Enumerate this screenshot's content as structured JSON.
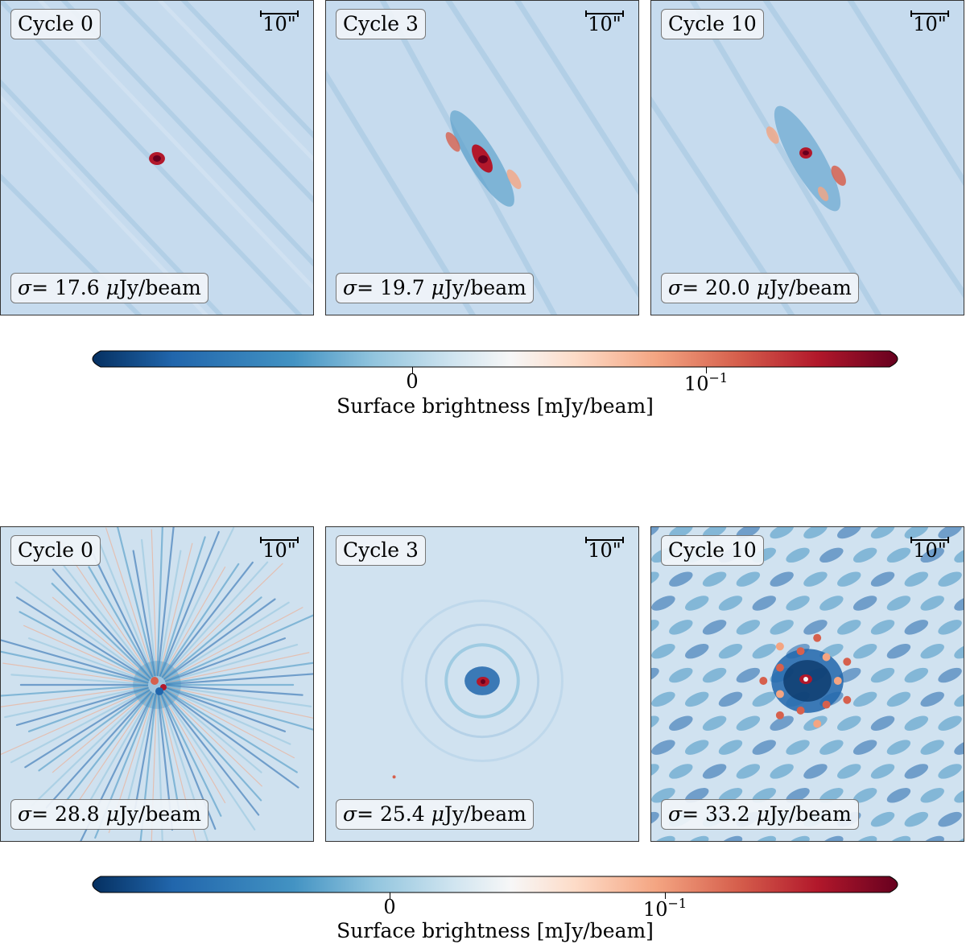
{
  "top_row": {
    "panels": [
      {
        "cycle": "Cycle 0",
        "sigma_value": "= 17.6 ",
        "sigma_unit": "Jy/beam"
      },
      {
        "cycle": "Cycle 3",
        "sigma_value": "= 19.7 ",
        "sigma_unit": "Jy/beam"
      },
      {
        "cycle": "Cycle 10",
        "sigma_value": "= 20.0 ",
        "sigma_unit": "Jy/beam"
      }
    ],
    "colorbar": {
      "tick_zero": "0",
      "tick_exp_base": "10",
      "tick_exp": "−1",
      "label": "Surface brightness [mJy/beam]"
    }
  },
  "bottom_row": {
    "panels": [
      {
        "cycle": "Cycle 0",
        "sigma_value": "= 28.8 ",
        "sigma_unit": "Jy/beam"
      },
      {
        "cycle": "Cycle 3",
        "sigma_value": "= 25.4 ",
        "sigma_unit": "Jy/beam"
      },
      {
        "cycle": "Cycle 10",
        "sigma_value": "= 33.2 ",
        "sigma_unit": "Jy/beam"
      }
    ],
    "colorbar": {
      "tick_zero": "0",
      "tick_exp_base": "10",
      "tick_exp": "−1",
      "label": "Surface brightness [mJy/beam]"
    }
  },
  "scalebar_label": "10\"",
  "sigma_symbol": "σ",
  "mu_symbol": "μ",
  "colormap": [
    "#053061",
    "#2166ac",
    "#4393c3",
    "#92c5de",
    "#d1e5f0",
    "#f7f7f7",
    "#fddbc7",
    "#f4a582",
    "#d6604d",
    "#b2182b",
    "#67001f"
  ]
}
